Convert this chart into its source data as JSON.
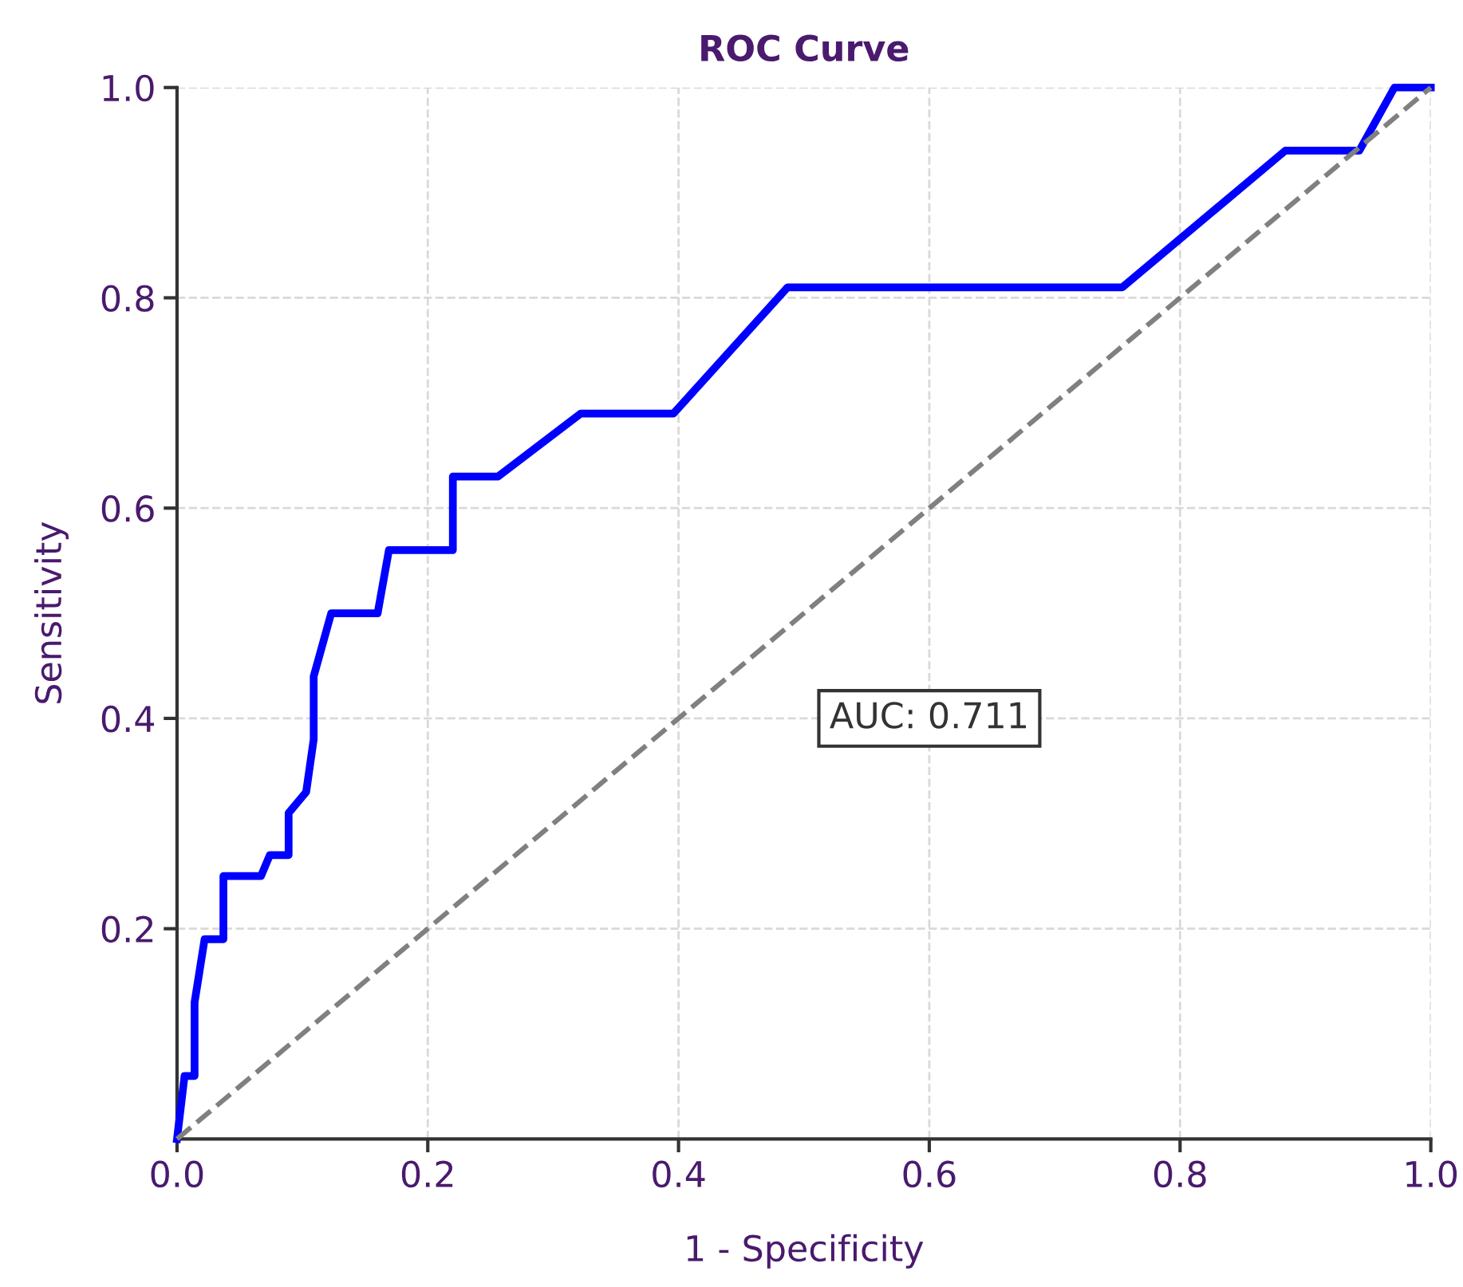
{
  "chart_data": {
    "type": "line",
    "title": "ROC Curve",
    "xlabel": "1 - Specificity",
    "ylabel": "Sensitivity",
    "annotations": [
      "AUC: 0.711"
    ],
    "series": [
      {
        "color": "#0000ff",
        "line_style": "solid",
        "x": [
          0,
          0.006,
          0.014,
          0.014,
          0.022,
          0.037,
          0.037,
          0.067,
          0.074,
          0.089,
          0.089,
          0.103,
          0.109,
          0.109,
          0.123,
          0.16,
          0.169,
          0.22,
          0.22,
          0.256,
          0.322,
          0.396,
          0.487,
          0.754,
          0.884,
          0.943,
          0.971,
          1.0
        ],
        "values": [
          0,
          0.06,
          0.06,
          0.13,
          0.19,
          0.19,
          0.25,
          0.25,
          0.27,
          0.27,
          0.31,
          0.33,
          0.38,
          0.44,
          0.5,
          0.5,
          0.56,
          0.56,
          0.63,
          0.63,
          0.69,
          0.69,
          0.81,
          0.81,
          0.94,
          0.94,
          1.0,
          1.0
        ]
      },
      {
        "color": "#808080",
        "line_style": "dashed",
        "x": [
          0,
          1
        ],
        "values": [
          0,
          1
        ]
      }
    ],
    "xlim": [
      0,
      1
    ],
    "ylim": [
      0,
      1
    ],
    "xticks": [
      {
        "value": 0,
        "label": "0.0"
      },
      0.2,
      0.4,
      0.6,
      0.8,
      {
        "value": 1,
        "label": "1.0"
      }
    ],
    "yticks": [
      0.2,
      0.4,
      0.6,
      0.8,
      {
        "value": 1,
        "label": "1.0"
      }
    ],
    "grid": true
  }
}
